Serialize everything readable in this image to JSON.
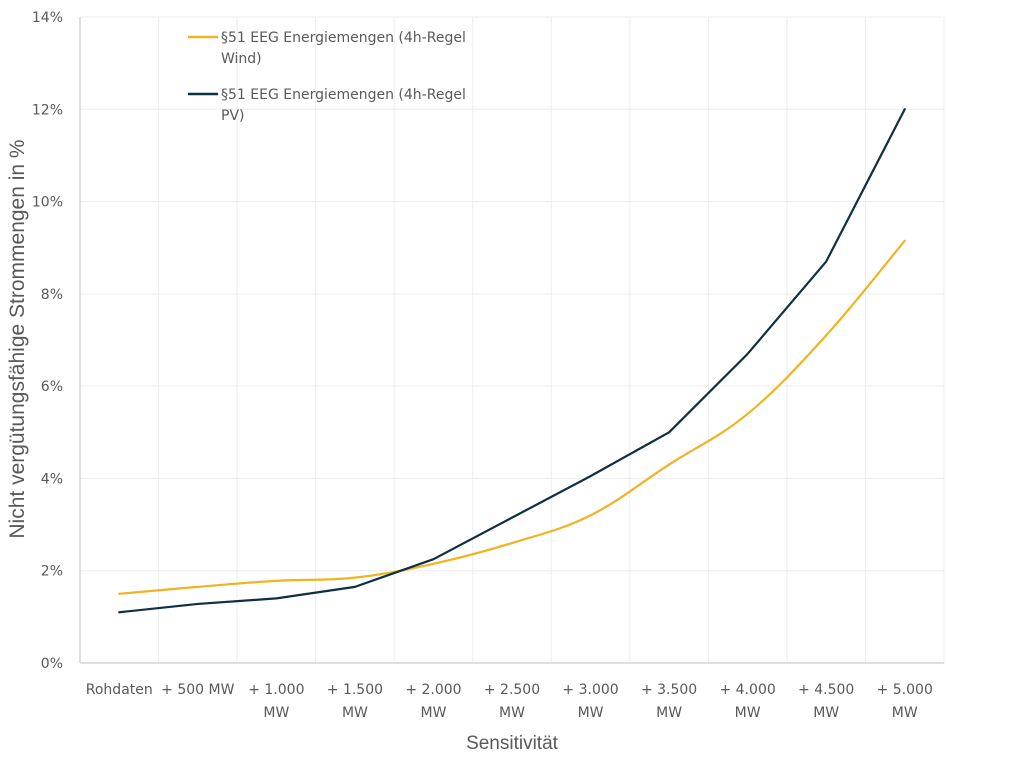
{
  "chart_data": {
    "type": "line",
    "title": "",
    "xlabel": "Sensitivität",
    "ylabel": "Nicht vergütungsfähige Strommengen in %",
    "categories": [
      [
        "Rohdaten"
      ],
      [
        "+ 500 MW"
      ],
      [
        "+ 1.000",
        "MW"
      ],
      [
        "+ 1.500",
        "MW"
      ],
      [
        "+ 2.000",
        "MW"
      ],
      [
        "+ 2.500",
        "MW"
      ],
      [
        "+ 3.000",
        "MW"
      ],
      [
        "+ 3.500",
        "MW"
      ],
      [
        "+ 4.000",
        "MW"
      ],
      [
        "+ 4.500",
        "MW"
      ],
      [
        "+ 5.000",
        "MW"
      ]
    ],
    "y_ticks": [
      "0%",
      "2%",
      "4%",
      "6%",
      "8%",
      "10%",
      "12%",
      "14%"
    ],
    "ylim": [
      0,
      14
    ],
    "grid": true,
    "legend_position": "top-left",
    "series": [
      {
        "name_lines": [
          "§51 EEG Energiemengen (4h-Regel",
          "Wind)"
        ],
        "color": "#F0B323",
        "smooth": true,
        "values": [
          1.5,
          1.65,
          1.78,
          1.85,
          2.15,
          2.6,
          3.2,
          4.3,
          5.4,
          7.1,
          9.15
        ]
      },
      {
        "name_lines": [
          "§51 EEG Energiemengen (4h-Regel",
          "PV)"
        ],
        "color": "#0E2F44",
        "smooth": false,
        "values": [
          1.1,
          1.28,
          1.4,
          1.65,
          2.25,
          3.15,
          4.05,
          5.0,
          6.7,
          8.7,
          12.0
        ]
      }
    ]
  }
}
